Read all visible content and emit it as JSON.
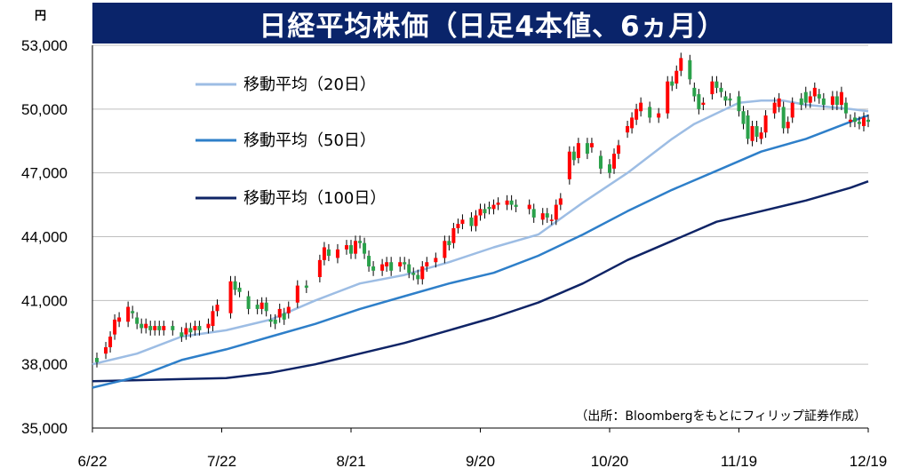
{
  "header": {
    "title": "日経平均株価（日足4本値、6ヵ月）",
    "unit": "円"
  },
  "source_note": "（出所：Bloombergをもとにフィリップ証券作成）",
  "colors": {
    "title_bg": "#0a246a",
    "ma20": "#9dbde4",
    "ma50": "#2e7fc9",
    "ma100": "#0f2466",
    "up": "#ff0000",
    "down": "#2aa14a",
    "grid": "#bfbfbf"
  },
  "chart_data": {
    "type": "candlestick",
    "title": "日経平均株価（日足4本値、6ヵ月）",
    "ylabel": "円",
    "ylim": [
      35000,
      53000
    ],
    "yticks": [
      "35,000",
      "38,000",
      "41,000",
      "44,000",
      "47,000",
      "50,000",
      "53,000"
    ],
    "ytick_values": [
      35000,
      38000,
      41000,
      44000,
      47000,
      50000,
      53000
    ],
    "xticks": [
      "6/22",
      "7/22",
      "8/21",
      "9/20",
      "10/20",
      "11/19",
      "12/19"
    ],
    "n_days": 123,
    "grid": "horizontal",
    "legend": [
      "移動平均（20日）",
      "移動平均（50日）",
      "移動平均（100日）"
    ],
    "legend_position": "top-left",
    "candles": [
      [
        1,
        38300,
        38100
      ],
      [
        3,
        38500,
        38800
      ],
      [
        4,
        38800,
        39300
      ],
      [
        5,
        39400,
        40100
      ],
      [
        6,
        40000,
        40200
      ],
      [
        8,
        40000,
        40700
      ],
      [
        9,
        40500,
        40400
      ],
      [
        10,
        40200,
        39900
      ],
      [
        11,
        39900,
        39700
      ],
      [
        12,
        39700,
        39900
      ],
      [
        13,
        39800,
        39600
      ],
      [
        14,
        39600,
        39800
      ],
      [
        15,
        39800,
        39600
      ],
      [
        16,
        39600,
        39800
      ],
      [
        18,
        39800,
        39600
      ],
      [
        20,
        39500,
        39300
      ],
      [
        21,
        39400,
        39700
      ],
      [
        22,
        39700,
        39500
      ],
      [
        23,
        39600,
        39800
      ],
      [
        24,
        39800,
        39600
      ],
      [
        26,
        39700,
        39900
      ],
      [
        27,
        39800,
        40500
      ],
      [
        28,
        40500,
        40800
      ],
      [
        31,
        40400,
        41900
      ],
      [
        32,
        41900,
        41500
      ],
      [
        33,
        41600,
        41400
      ],
      [
        35,
        41200,
        40600
      ],
      [
        37,
        40800,
        40600
      ],
      [
        38,
        40600,
        40900
      ],
      [
        39,
        40900,
        40500
      ],
      [
        40,
        40100,
        40000
      ],
      [
        41,
        40100,
        39900
      ],
      [
        42,
        40200,
        40600
      ],
      [
        43,
        40400,
        40100
      ],
      [
        44,
        40400,
        40700
      ],
      [
        46,
        40900,
        41700
      ],
      [
        48,
        41700,
        41600
      ],
      [
        51,
        42100,
        42900
      ],
      [
        52,
        42900,
        43500
      ],
      [
        53,
        43400,
        43100
      ],
      [
        55,
        43000,
        43400
      ],
      [
        57,
        43400,
        43600
      ],
      [
        58,
        43600,
        43200
      ],
      [
        59,
        43200,
        43800
      ],
      [
        60,
        43800,
        43700
      ],
      [
        61,
        43700,
        43200
      ],
      [
        62,
        43100,
        42600
      ],
      [
        63,
        42600,
        42400
      ],
      [
        65,
        42400,
        42700
      ],
      [
        66,
        42600,
        42800
      ],
      [
        67,
        42800,
        42400
      ],
      [
        69,
        42600,
        42800
      ],
      [
        70,
        42800,
        42700
      ],
      [
        71,
        42700,
        42300
      ],
      [
        72,
        42300,
        42200
      ],
      [
        73,
        42200,
        42000
      ],
      [
        74,
        42000,
        42600
      ],
      [
        75,
        42600,
        42800
      ],
      [
        77,
        42800,
        43000
      ],
      [
        79,
        43000,
        43800
      ],
      [
        80,
        43800,
        43600
      ],
      [
        81,
        43700,
        44400
      ],
      [
        82,
        44400,
        44600
      ],
      [
        83,
        44600,
        44800
      ],
      [
        85,
        44900,
        44500
      ],
      [
        86,
        44500,
        45000
      ],
      [
        87,
        45000,
        45300
      ],
      [
        88,
        45300,
        45100
      ],
      [
        89,
        45400,
        45300
      ],
      [
        90,
        45300,
        45500
      ],
      [
        91,
        45500,
        45600
      ],
      [
        93,
        45500,
        45700
      ],
      [
        94,
        45700,
        45500
      ],
      [
        95,
        45500,
        45400
      ],
      [
        98,
        45300,
        45500
      ],
      [
        99,
        45300,
        44900
      ],
      [
        101,
        44800,
        45100
      ],
      [
        102,
        45100,
        44900
      ],
      [
        103,
        44800,
        44800
      ],
      [
        104,
        44800,
        45500
      ],
      [
        105,
        45500,
        45800
      ],
      [
        107,
        46700,
        48000
      ],
      [
        108,
        48000,
        47600
      ],
      [
        109,
        47700,
        48400
      ],
      [
        111,
        48400,
        47900
      ],
      [
        112,
        48200,
        48400
      ],
      [
        114,
        47800,
        47200
      ],
      [
        116,
        47400,
        47000
      ],
      [
        117,
        47200,
        47900
      ],
      [
        118,
        47900,
        48300
      ]
    ]
  },
  "candles_late": [
    [
      120,
      48900,
      49200
    ],
    [
      121,
      49100,
      49600
    ],
    [
      122,
      49500,
      50000
    ],
    [
      123,
      49900,
      50300
    ],
    [
      125,
      50100,
      49600
    ],
    [
      127,
      49600,
      49800
    ],
    [
      129,
      49800,
      51300
    ],
    [
      130,
      51300,
      51100
    ],
    [
      131,
      51200,
      51800
    ],
    [
      132,
      51800,
      52400
    ],
    [
      134,
      52300,
      51400
    ],
    [
      135,
      51000,
      50600
    ],
    [
      136,
      50700,
      50000
    ],
    [
      137,
      50200,
      50300
    ],
    [
      139,
      50700,
      51300
    ],
    [
      140,
      51300,
      51000
    ],
    [
      141,
      51000,
      50800
    ],
    [
      142,
      50600,
      50400
    ],
    [
      143,
      50500,
      50400
    ],
    [
      145,
      50600,
      49900
    ],
    [
      146,
      49900,
      49300
    ],
    [
      147,
      49700,
      48600
    ],
    [
      148,
      48500,
      49200
    ],
    [
      149,
      49200,
      48700
    ],
    [
      150,
      48600,
      48900
    ],
    [
      151,
      48900,
      49700
    ],
    [
      153,
      49800,
      50300
    ],
    [
      154,
      50100,
      50500
    ],
    [
      155,
      50100,
      49100
    ],
    [
      156,
      49100,
      49400
    ],
    [
      157,
      49600,
      50300
    ],
    [
      159,
      50500,
      50200
    ],
    [
      160,
      50800,
      50300
    ],
    [
      161,
      50300,
      50600
    ],
    [
      162,
      50600,
      51000
    ],
    [
      163,
      50700,
      50500
    ],
    [
      164,
      50500,
      50200
    ],
    [
      166,
      50200,
      50600
    ],
    [
      167,
      50600,
      50200
    ],
    [
      168,
      50200,
      50800
    ],
    [
      169,
      50300,
      49800
    ],
    [
      170,
      49400,
      49500
    ],
    [
      171,
      49600,
      49400
    ],
    [
      172,
      49400,
      49300
    ],
    [
      173,
      49200,
      49600
    ],
    [
      174,
      49500,
      49400
    ]
  ],
  "ma20_points": [
    [
      0,
      38000
    ],
    [
      10,
      38500
    ],
    [
      20,
      39300
    ],
    [
      30,
      39600
    ],
    [
      40,
      40100
    ],
    [
      50,
      41000
    ],
    [
      60,
      41800
    ],
    [
      70,
      42200
    ],
    [
      80,
      42800
    ],
    [
      90,
      43500
    ],
    [
      100,
      44100
    ],
    [
      110,
      45600
    ],
    [
      120,
      47000
    ],
    [
      125,
      47800
    ],
    [
      130,
      48600
    ],
    [
      135,
      49300
    ],
    [
      140,
      49800
    ],
    [
      145,
      50300
    ],
    [
      150,
      50400
    ],
    [
      155,
      50400
    ],
    [
      160,
      50200
    ],
    [
      165,
      50100
    ],
    [
      170,
      50000
    ],
    [
      174,
      49900
    ]
  ],
  "ma50_points": [
    [
      0,
      36900
    ],
    [
      10,
      37400
    ],
    [
      20,
      38200
    ],
    [
      30,
      38700
    ],
    [
      40,
      39300
    ],
    [
      50,
      39900
    ],
    [
      60,
      40600
    ],
    [
      70,
      41200
    ],
    [
      80,
      41800
    ],
    [
      90,
      42300
    ],
    [
      100,
      43100
    ],
    [
      110,
      44100
    ],
    [
      120,
      45200
    ],
    [
      130,
      46200
    ],
    [
      140,
      47100
    ],
    [
      150,
      48000
    ],
    [
      160,
      48600
    ],
    [
      170,
      49400
    ],
    [
      174,
      49700
    ]
  ],
  "ma100_points": [
    [
      0,
      37200
    ],
    [
      10,
      37250
    ],
    [
      20,
      37300
    ],
    [
      30,
      37350
    ],
    [
      40,
      37600
    ],
    [
      50,
      38000
    ],
    [
      60,
      38500
    ],
    [
      70,
      39000
    ],
    [
      80,
      39600
    ],
    [
      90,
      40200
    ],
    [
      100,
      40900
    ],
    [
      110,
      41800
    ],
    [
      120,
      42900
    ],
    [
      130,
      43800
    ],
    [
      140,
      44700
    ],
    [
      150,
      45200
    ],
    [
      160,
      45700
    ],
    [
      170,
      46300
    ],
    [
      174,
      46600
    ]
  ]
}
